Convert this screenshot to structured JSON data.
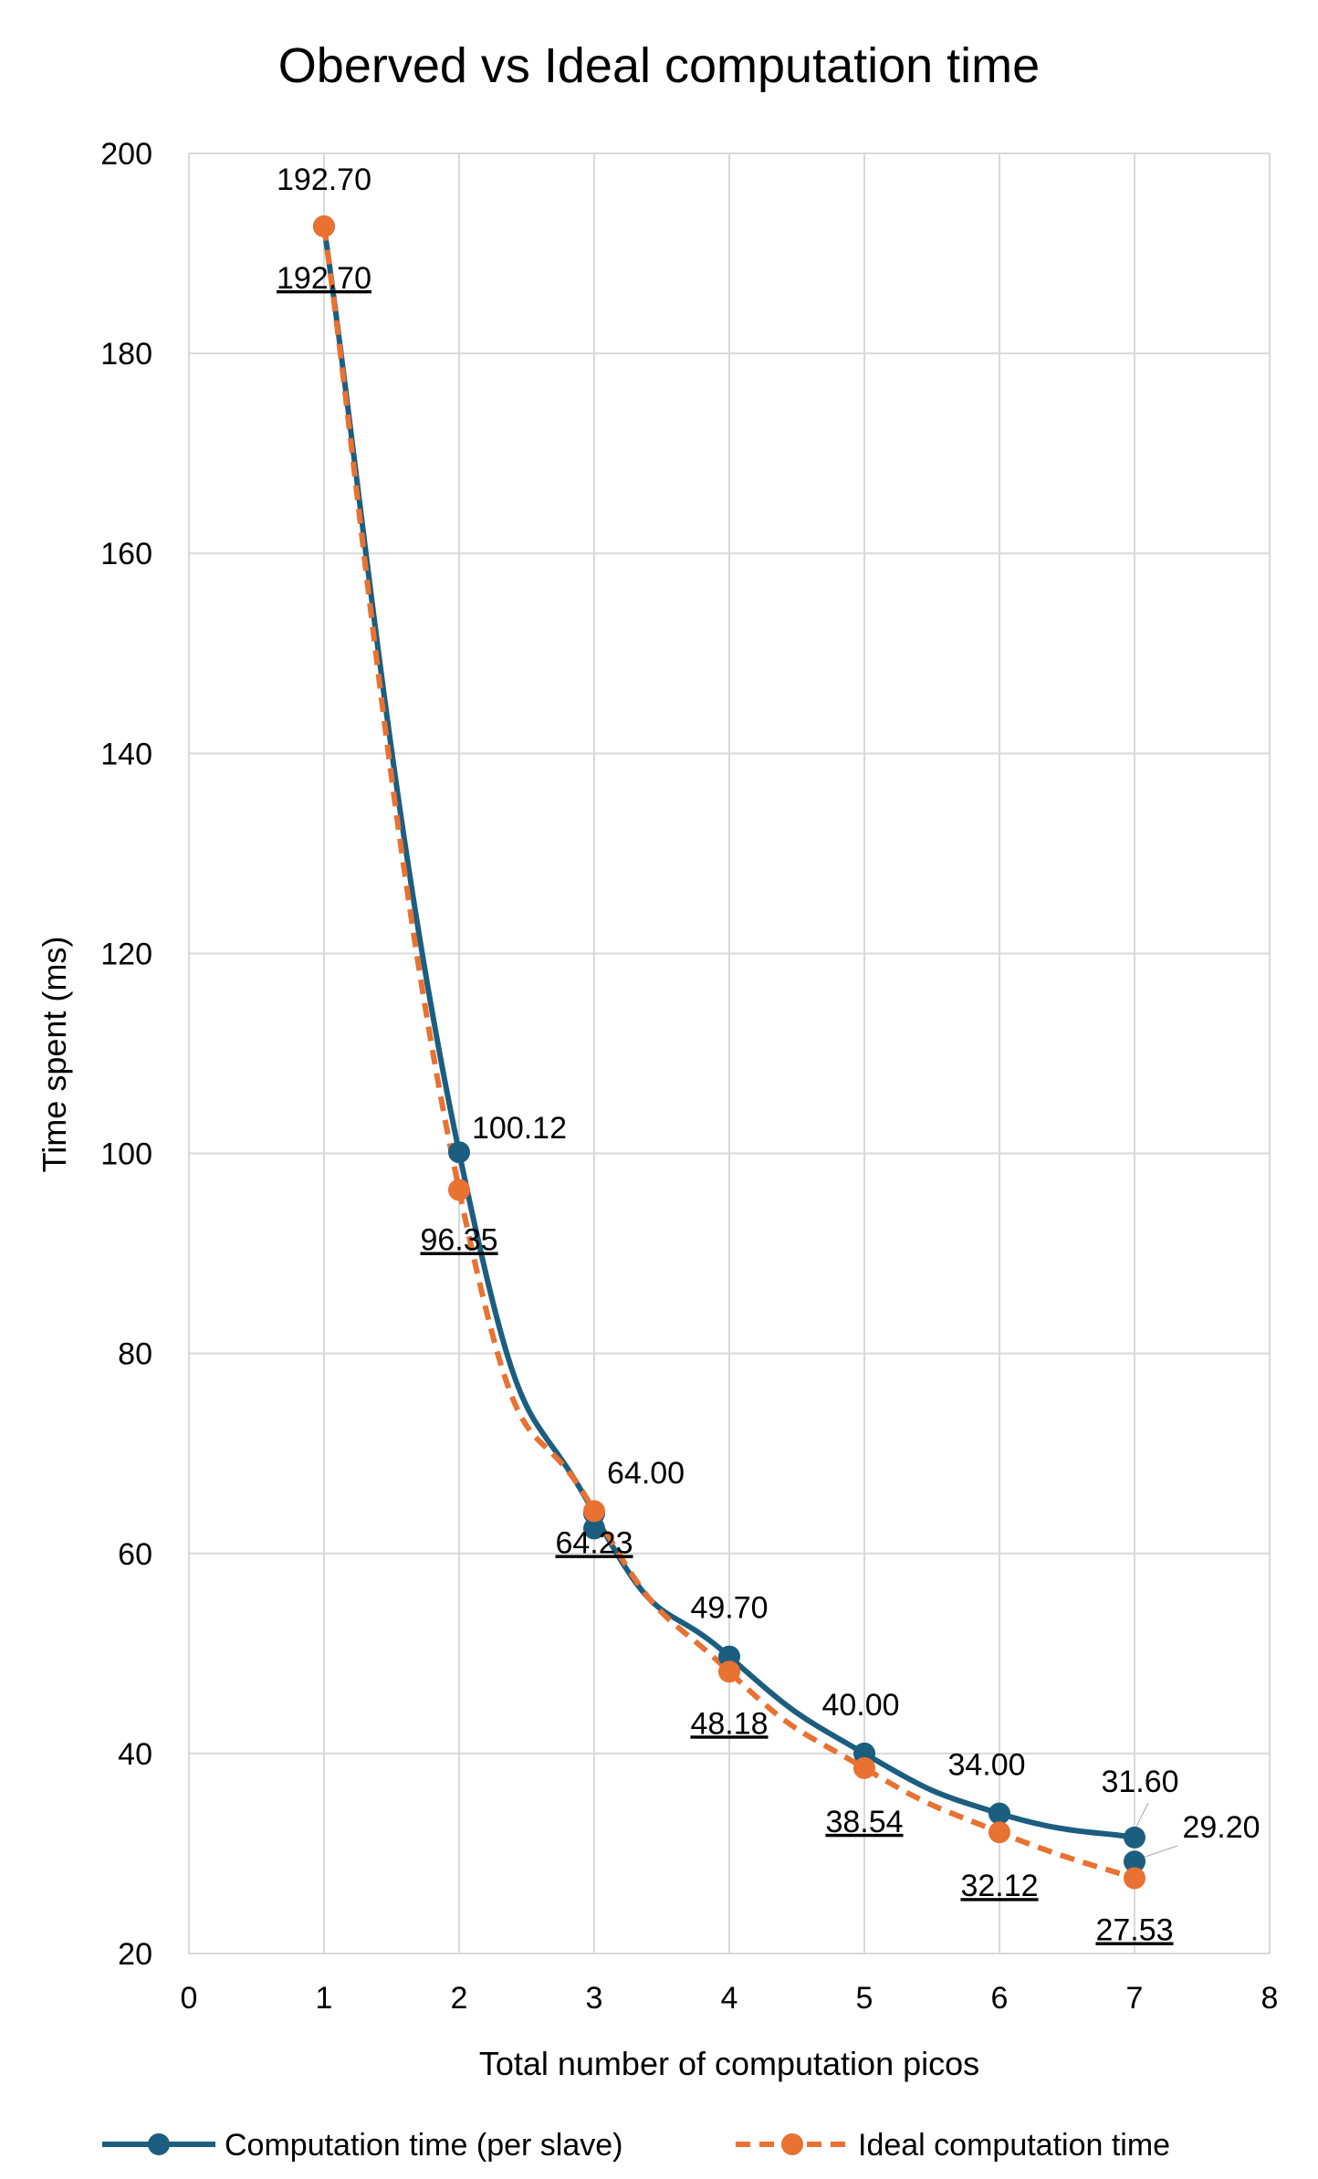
{
  "chart_data": {
    "type": "line",
    "title": "Oberved vs Ideal computation time",
    "xlabel": "Total number of computation picos",
    "ylabel": "Time spent (ms)",
    "xlim": [
      0,
      8
    ],
    "ylim": [
      20,
      200
    ],
    "x_ticks": [
      "0",
      "1",
      "2",
      "3",
      "4",
      "5",
      "6",
      "7",
      "8"
    ],
    "y_ticks": [
      "20",
      "40",
      "60",
      "80",
      "100",
      "120",
      "140",
      "160",
      "180",
      "200"
    ],
    "grid": true,
    "legend_position": "bottom",
    "series": [
      {
        "name": "Computation time (per slave)",
        "color": "#1B5E7F",
        "line_style": "solid",
        "x": [
          1,
          2,
          3,
          4,
          5,
          6,
          7
        ],
        "values": [
          192.7,
          100.12,
          64.0,
          49.7,
          40.0,
          34.0,
          31.6
        ],
        "labels": [
          "192.70",
          "100.12",
          "64.00",
          "49.70",
          "40.00",
          "34.00",
          "31.60"
        ]
      },
      {
        "name": "Ideal computation time",
        "color": "#E97132",
        "line_style": "dashed",
        "x": [
          1,
          2,
          3,
          4,
          5,
          6,
          7
        ],
        "values": [
          192.7,
          96.35,
          64.23,
          48.18,
          38.54,
          32.12,
          27.53
        ],
        "labels": [
          "192.70",
          "96.35",
          "64.23",
          "48.18",
          "38.54",
          "32.12",
          "27.53"
        ]
      }
    ],
    "extra_points": [
      {
        "x": 3,
        "y": 62.5,
        "series": 0
      },
      {
        "x": 7,
        "y": 29.2,
        "series": 0,
        "label": "29.20"
      }
    ]
  }
}
